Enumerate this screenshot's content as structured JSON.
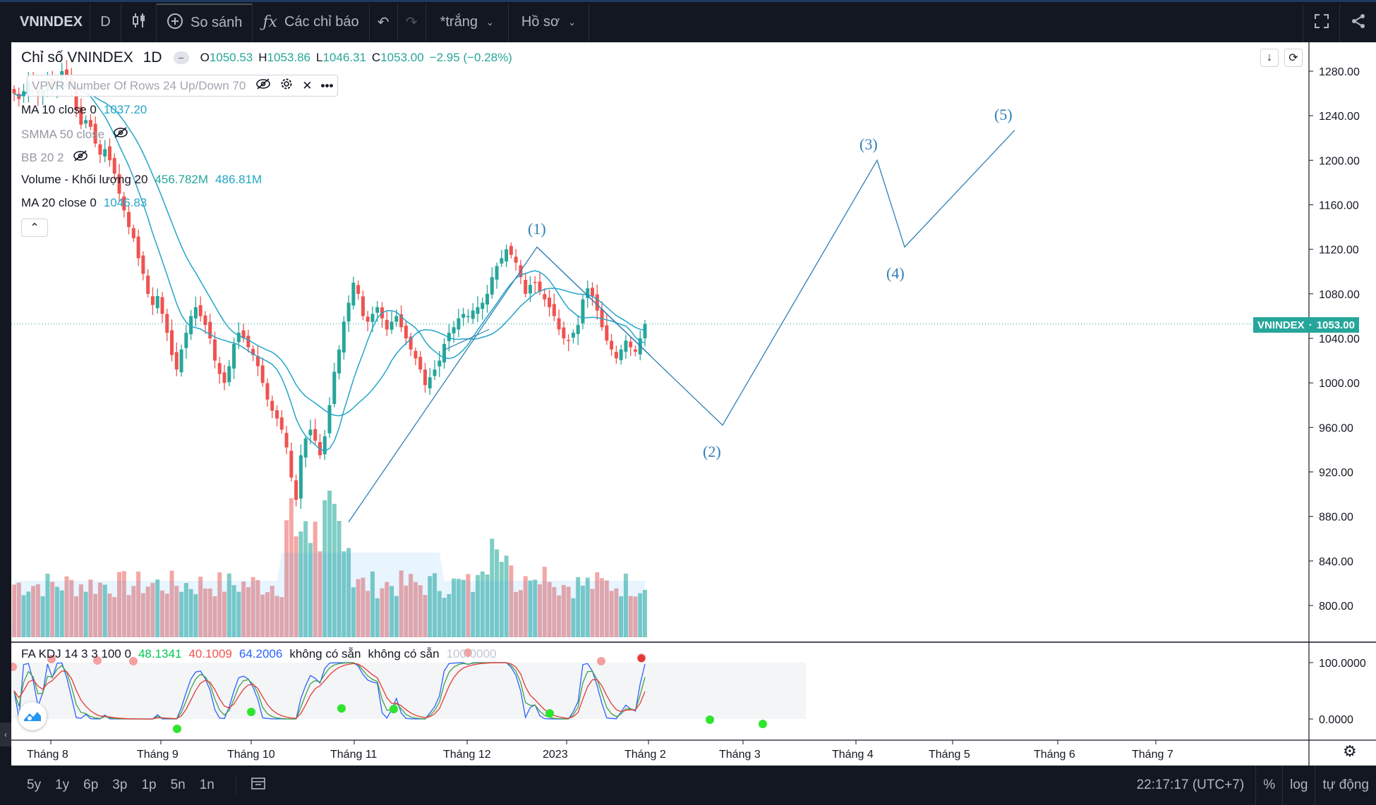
{
  "toolbar": {
    "symbol": "VNINDEX",
    "interval": "D",
    "compare_label": "So sánh",
    "indicators_label": "Các chỉ báo",
    "layout_label": "*trắng",
    "profile_label": "Hồ sơ"
  },
  "legend": {
    "title": "Chỉ số VNINDEX",
    "interval": "1D",
    "o_label": "O",
    "o_value": "1050.53",
    "h_label": "H",
    "h_value": "1053.86",
    "l_label": "L",
    "l_value": "1046.31",
    "c_label": "C",
    "c_value": "1053.00",
    "change": "−2.95 (−0.28%)",
    "vpvr": "VPVR Number Of Rows 24 Up/Down 70",
    "ma10": "MA 10 close 0",
    "ma10_value": "1037.20",
    "smma": "SMMA 50 close",
    "bb": "BB 20 2",
    "volume": "Volume - Khối lượng 20",
    "volume_v1": "456.782M",
    "volume_v2": "486.81M",
    "ma20": "MA 20 close 0",
    "ma20_value": "1046.83"
  },
  "kdj_legend": {
    "name": "FA KDJ 14 3 3 100 0",
    "k": "48.1341",
    "d": "40.1009",
    "j": "64.2006",
    "na1": "không có sẵn",
    "na2": "không có sẵn",
    "extra": "100.0000"
  },
  "price_tag": {
    "label": "VNINDEX",
    "value": "1053.00",
    "color": "#26a69a"
  },
  "waves": [
    "(1)",
    "(2)",
    "(3)",
    "(4)",
    "(5)"
  ],
  "bottom": {
    "ranges": [
      "5y",
      "1y",
      "6p",
      "3p",
      "1p",
      "5n",
      "1n"
    ],
    "clock": "22:17:17 (UTC+7)",
    "percent": "%",
    "log": "log",
    "auto": "tự động"
  },
  "colors": {
    "up": "#26a69a",
    "down": "#ef5350",
    "ma": "#22a6c8",
    "wave": "#2f7fb5",
    "k": "#2962ff",
    "d": "#e53935",
    "j": "#43a047"
  },
  "chart_data": {
    "type": "candlestick",
    "title": "Chỉ số VNINDEX",
    "ylim": [
      780,
      1290
    ],
    "y_ticks": [
      "1280.00",
      "1240.00",
      "1200.00",
      "1160.00",
      "1120.00",
      "1080.00",
      "1040.00",
      "1000.00",
      "960.00",
      "920.00",
      "880.00",
      "840.00",
      "800.00"
    ],
    "x_ticks": [
      "Tháng 8",
      "Tháng 9",
      "Tháng 10",
      "Tháng 11",
      "Tháng 12",
      "2023",
      "Tháng 2",
      "Tháng 3",
      "Tháng 4",
      "Tháng 5",
      "Tháng 6",
      "Tháng 7"
    ],
    "kdj_ticks": [
      "100.0000",
      "0.0000"
    ],
    "close_series": [
      1260,
      1255,
      1262,
      1270,
      1265,
      1258,
      1262,
      1270,
      1266,
      1272,
      1280,
      1274,
      1266,
      1245,
      1232,
      1236,
      1230,
      1215,
      1205,
      1210,
      1200,
      1188,
      1170,
      1155,
      1140,
      1130,
      1112,
      1098,
      1080,
      1070,
      1078,
      1062,
      1045,
      1025,
      1012,
      1030,
      1045,
      1060,
      1068,
      1060,
      1052,
      1040,
      1020,
      1008,
      1000,
      1015,
      1035,
      1045,
      1040,
      1032,
      1025,
      1015,
      1000,
      985,
      975,
      968,
      958,
      942,
      915,
      895,
      935,
      950,
      958,
      948,
      935,
      952,
      980,
      1010,
      1030,
      1055,
      1072,
      1090,
      1080,
      1060,
      1055,
      1062,
      1068,
      1058,
      1048,
      1055,
      1060,
      1050,
      1040,
      1030,
      1022,
      1012,
      998,
      1005,
      1012,
      1020,
      1035,
      1045,
      1050,
      1058,
      1062,
      1060,
      1065,
      1068,
      1072,
      1080,
      1095,
      1105,
      1112,
      1120,
      1115,
      1108,
      1095,
      1080,
      1088,
      1090,
      1082,
      1075,
      1068,
      1060,
      1048,
      1040,
      1038,
      1045,
      1052,
      1075,
      1085,
      1078,
      1065,
      1050,
      1038,
      1030,
      1022,
      1030,
      1038,
      1032,
      1028,
      1040,
      1053
    ],
    "wave_points": [
      [
        478,
        875
      ],
      [
        745,
        1122
      ],
      [
        1008,
        962
      ],
      [
        1227,
        1200
      ],
      [
        1266,
        1122
      ],
      [
        1422,
        1227
      ]
    ]
  }
}
